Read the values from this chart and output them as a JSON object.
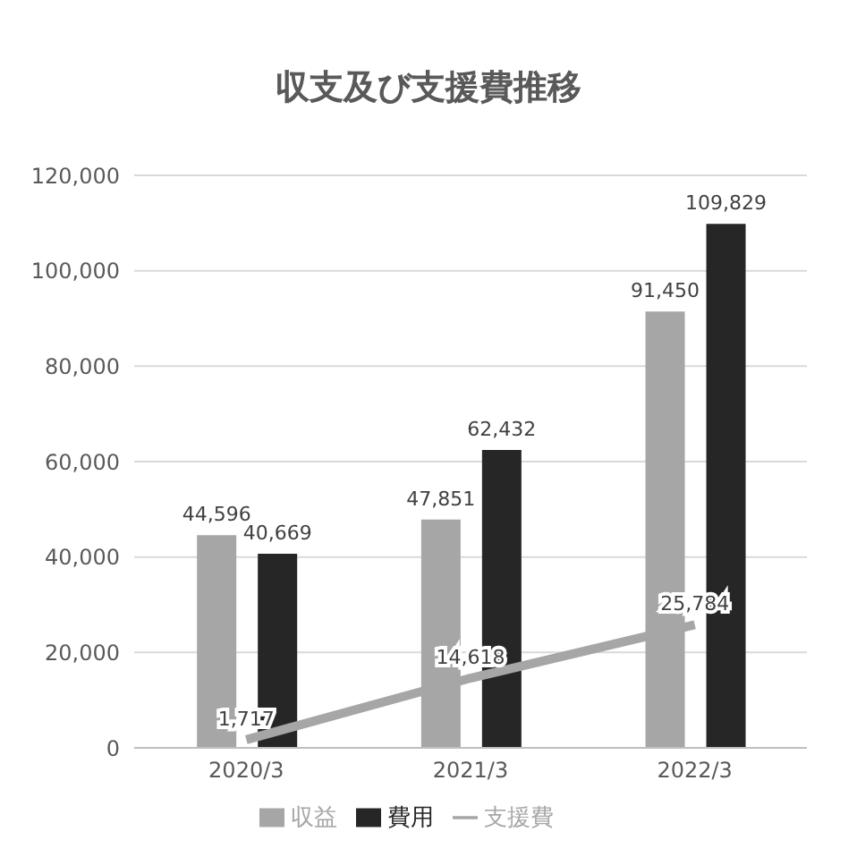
{
  "chart_data": {
    "type": "bar",
    "title": "収支及び支援費推移",
    "categories": [
      "2020/3",
      "2021/3",
      "2022/3"
    ],
    "series": [
      {
        "name": "収益",
        "color": "#a6a6a6",
        "values": [
          44596,
          47851,
          91450
        ],
        "value_labels": [
          "44,596",
          "47,851",
          "91,450"
        ]
      },
      {
        "name": "費用",
        "color": "#262626",
        "values": [
          40669,
          62432,
          109829
        ],
        "value_labels": [
          "40,669",
          "62,432",
          "109,829"
        ]
      },
      {
        "name": "支援費",
        "type": "line",
        "color": "#a6a6a6",
        "values": [
          1717,
          14618,
          25784
        ],
        "value_labels": [
          "1,717",
          "14,618",
          "25,784"
        ]
      }
    ],
    "ylim": [
      0,
      120000
    ],
    "yticks": [
      0,
      {
        "value": 20000,
        "label": "20,000"
      },
      {
        "value": 40000,
        "label": "40,000"
      },
      {
        "value": 60000,
        "label": "60,000"
      },
      {
        "value": 80000,
        "label": "80,000"
      },
      {
        "value": 100000,
        "label": "100,000"
      },
      {
        "value": 120000,
        "label": "120,000"
      }
    ],
    "grid": "y",
    "legend": "bottom"
  }
}
